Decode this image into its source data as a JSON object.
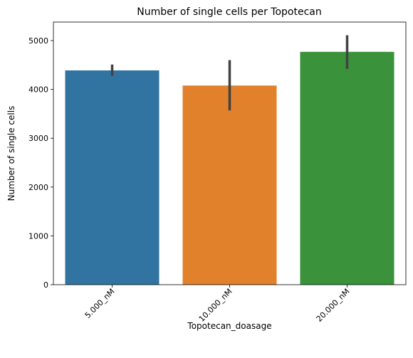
{
  "chart_data": {
    "type": "bar",
    "title": "Number of single cells per Topotecan",
    "xlabel": "Topotecan_doasage",
    "ylabel": "Number of single cells",
    "categories": [
      "5.000_nM",
      "10.000_nM",
      "20.000_nM"
    ],
    "values": [
      4390,
      4080,
      4770
    ],
    "error_bars": [
      [
        4280,
        4510
      ],
      [
        3570,
        4600
      ],
      [
        4420,
        5110
      ]
    ],
    "colors": [
      "#3274a1",
      "#e1812c",
      "#3a923a"
    ],
    "ylim": [
      0,
      5380
    ],
    "yticks": [
      0,
      1000,
      2000,
      3000,
      4000,
      5000
    ],
    "ytick_labels": [
      "0",
      "1000",
      "2000",
      "3000",
      "4000",
      "5000"
    ],
    "error_color": "#424242",
    "grid": false,
    "legend": "none"
  }
}
